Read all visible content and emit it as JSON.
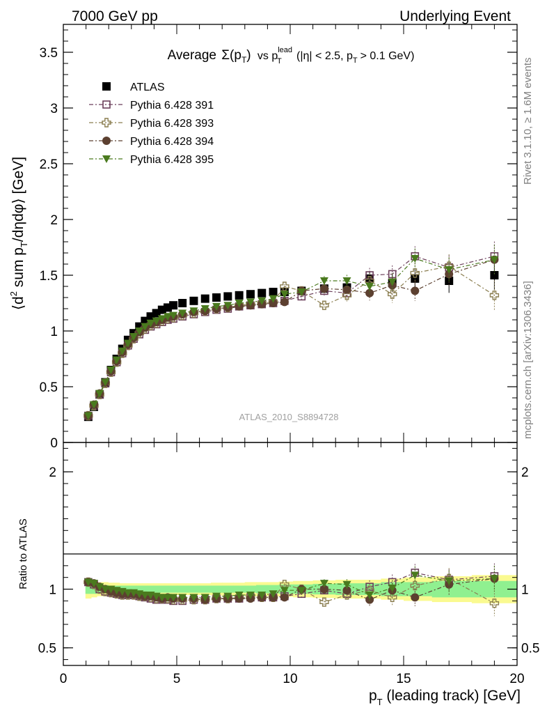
{
  "header": {
    "left": "7000 GeV pp",
    "right": "Underlying Event"
  },
  "side": {
    "rivet": "Rivet 3.1.10, ≥ 1.6M events",
    "mcplots": "mcplots.cern.ch [arXiv:1306.3436]"
  },
  "chart_data": [
    {
      "type": "scatter",
      "title_main": "Average",
      "title_sigma": "Σ(p",
      "title_sigma_sub": "T",
      "title_sigma_close": ")",
      "title_vs": "vs p",
      "title_lead_sup": "lead",
      "title_lead_sub": "T",
      "title_rest": "(|η| < 2.5, p",
      "title_rest_sub": "T",
      "title_end": "> 0.1 GeV)",
      "ylabel_a": "⟨d",
      "ylabel_sup": "2",
      "ylabel_b": " sum p",
      "ylabel_sub": "T",
      "ylabel_c": "/dηdφ⟩ [GeV]",
      "watermark": "ATLAS_2010_S8894728",
      "xlim": [
        0,
        20
      ],
      "ylim": [
        0,
        3.75
      ],
      "yticks": [
        "0",
        "0.5",
        "1",
        "1.5",
        "2",
        "2.5",
        "3",
        "3.5"
      ],
      "ytick_values": [
        0,
        0.5,
        1,
        1.5,
        2,
        2.5,
        3,
        3.5
      ],
      "x": [
        1.1,
        1.35,
        1.6,
        1.85,
        2.1,
        2.35,
        2.6,
        2.85,
        3.1,
        3.35,
        3.6,
        3.85,
        4.1,
        4.35,
        4.6,
        4.85,
        5.25,
        5.75,
        6.25,
        6.75,
        7.25,
        7.75,
        8.25,
        8.75,
        9.25,
        9.75,
        10.5,
        11.5,
        12.5,
        13.5,
        14.5,
        15.5,
        17.0,
        19.0
      ],
      "series": [
        {
          "name": "ATLAS",
          "color": "#000000",
          "marker": "square-filled",
          "values": [
            0.23,
            0.32,
            0.43,
            0.54,
            0.65,
            0.75,
            0.84,
            0.92,
            0.98,
            1.04,
            1.09,
            1.13,
            1.16,
            1.19,
            1.21,
            1.23,
            1.25,
            1.27,
            1.29,
            1.3,
            1.31,
            1.32,
            1.33,
            1.34,
            1.35,
            1.35,
            1.36,
            1.38,
            1.39,
            1.47,
            1.43,
            1.47,
            1.45,
            1.5
          ]
        },
        {
          "name": "Pythia 6.428 391",
          "color": "#6b3f5a",
          "marker": "square-open",
          "values": [
            0.24,
            0.33,
            0.43,
            0.53,
            0.63,
            0.72,
            0.8,
            0.87,
            0.93,
            0.97,
            1.01,
            1.04,
            1.06,
            1.08,
            1.1,
            1.11,
            1.13,
            1.15,
            1.17,
            1.19,
            1.2,
            1.22,
            1.23,
            1.24,
            1.25,
            1.27,
            1.31,
            1.36,
            1.34,
            1.5,
            1.51,
            1.67,
            1.57,
            1.67
          ]
        },
        {
          "name": "Pythia 6.428 393",
          "color": "#8a7d4f",
          "marker": "cross-open",
          "values": [
            0.24,
            0.33,
            0.43,
            0.53,
            0.63,
            0.72,
            0.8,
            0.87,
            0.93,
            0.98,
            1.02,
            1.05,
            1.07,
            1.09,
            1.11,
            1.12,
            1.14,
            1.16,
            1.18,
            1.2,
            1.21,
            1.23,
            1.24,
            1.25,
            1.26,
            1.4,
            1.36,
            1.23,
            1.32,
            1.45,
            1.33,
            1.52,
            1.58,
            1.32
          ]
        },
        {
          "name": "Pythia 6.428 394",
          "color": "#5c4030",
          "marker": "circle-filled",
          "values": [
            0.24,
            0.34,
            0.44,
            0.54,
            0.64,
            0.73,
            0.81,
            0.88,
            0.94,
            0.99,
            1.03,
            1.06,
            1.08,
            1.1,
            1.12,
            1.13,
            1.15,
            1.17,
            1.18,
            1.2,
            1.21,
            1.22,
            1.23,
            1.24,
            1.25,
            1.26,
            1.36,
            1.38,
            1.37,
            1.34,
            1.41,
            1.36,
            1.51,
            1.64
          ]
        },
        {
          "name": "Pythia 6.428 395",
          "color": "#4a7a1e",
          "marker": "triangle-down-filled",
          "values": [
            0.24,
            0.34,
            0.44,
            0.54,
            0.65,
            0.74,
            0.82,
            0.89,
            0.95,
            1.0,
            1.04,
            1.07,
            1.09,
            1.11,
            1.13,
            1.14,
            1.16,
            1.18,
            1.2,
            1.22,
            1.23,
            1.25,
            1.26,
            1.27,
            1.29,
            1.33,
            1.35,
            1.45,
            1.45,
            1.4,
            1.44,
            1.65,
            1.55,
            1.64
          ]
        }
      ]
    },
    {
      "type": "scatter",
      "ylabel": "Ratio to ATLAS",
      "xlabel_a": "p",
      "xlabel_sub": "T",
      "xlabel_b": " (leading track) [GeV]",
      "xlim": [
        0,
        20
      ],
      "ylim": [
        0.35,
        2.25
      ],
      "xticks": [
        "0",
        "5",
        "10",
        "15",
        "20"
      ],
      "xtick_values": [
        0,
        5,
        10,
        15,
        20
      ],
      "yticks": [
        "0.5",
        "1",
        "2"
      ],
      "ytick_values": [
        0.5,
        1,
        2
      ],
      "band_colors": {
        "inner": "#90f090",
        "outer": "#fafa90"
      },
      "band_inner": [
        0.04,
        0.04,
        0.035,
        0.035,
        0.03,
        0.03,
        0.03,
        0.03,
        0.03,
        0.03,
        0.03,
        0.03,
        0.03,
        0.03,
        0.03,
        0.03,
        0.03,
        0.03,
        0.03,
        0.03,
        0.03,
        0.03,
        0.03,
        0.035,
        0.035,
        0.04,
        0.04,
        0.045,
        0.05,
        0.05,
        0.06,
        0.06,
        0.07,
        0.07
      ],
      "band_outer": [
        0.08,
        0.07,
        0.06,
        0.06,
        0.055,
        0.055,
        0.05,
        0.05,
        0.05,
        0.05,
        0.05,
        0.05,
        0.05,
        0.05,
        0.05,
        0.05,
        0.05,
        0.05,
        0.05,
        0.055,
        0.055,
        0.055,
        0.06,
        0.06,
        0.06,
        0.065,
        0.07,
        0.075,
        0.08,
        0.08,
        0.09,
        0.1,
        0.11,
        0.12
      ],
      "ratios": [
        [
          1.06,
          1.04,
          1.0,
          0.98,
          0.97,
          0.96,
          0.95,
          0.95,
          0.95,
          0.94,
          0.93,
          0.92,
          0.91,
          0.91,
          0.91,
          0.9,
          0.9,
          0.91,
          0.91,
          0.92,
          0.92,
          0.92,
          0.93,
          0.93,
          0.93,
          0.94,
          0.96,
          0.99,
          0.96,
          1.02,
          1.06,
          1.14,
          1.08,
          1.11
        ],
        [
          1.06,
          1.04,
          1.0,
          0.98,
          0.97,
          0.96,
          0.95,
          0.95,
          0.95,
          0.94,
          0.94,
          0.93,
          0.92,
          0.92,
          0.92,
          0.91,
          0.91,
          0.91,
          0.91,
          0.92,
          0.92,
          0.93,
          0.93,
          0.93,
          0.93,
          1.04,
          1.0,
          0.89,
          0.95,
          0.99,
          0.93,
          1.03,
          1.09,
          0.88
        ],
        [
          1.06,
          1.05,
          1.02,
          1.0,
          0.98,
          0.97,
          0.96,
          0.96,
          0.96,
          0.95,
          0.94,
          0.94,
          0.93,
          0.92,
          0.93,
          0.92,
          0.92,
          0.92,
          0.91,
          0.92,
          0.92,
          0.92,
          0.92,
          0.93,
          0.93,
          0.93,
          1.0,
          1.0,
          0.99,
          0.91,
          0.99,
          0.93,
          1.04,
          1.09
        ],
        [
          1.06,
          1.05,
          1.02,
          1.0,
          1.0,
          0.99,
          0.98,
          0.97,
          0.97,
          0.96,
          0.95,
          0.95,
          0.94,
          0.93,
          0.93,
          0.93,
          0.93,
          0.93,
          0.93,
          0.94,
          0.94,
          0.95,
          0.95,
          0.95,
          0.96,
          0.99,
          0.99,
          1.05,
          1.04,
          0.95,
          1.01,
          1.12,
          1.07,
          1.09
        ]
      ]
    }
  ]
}
